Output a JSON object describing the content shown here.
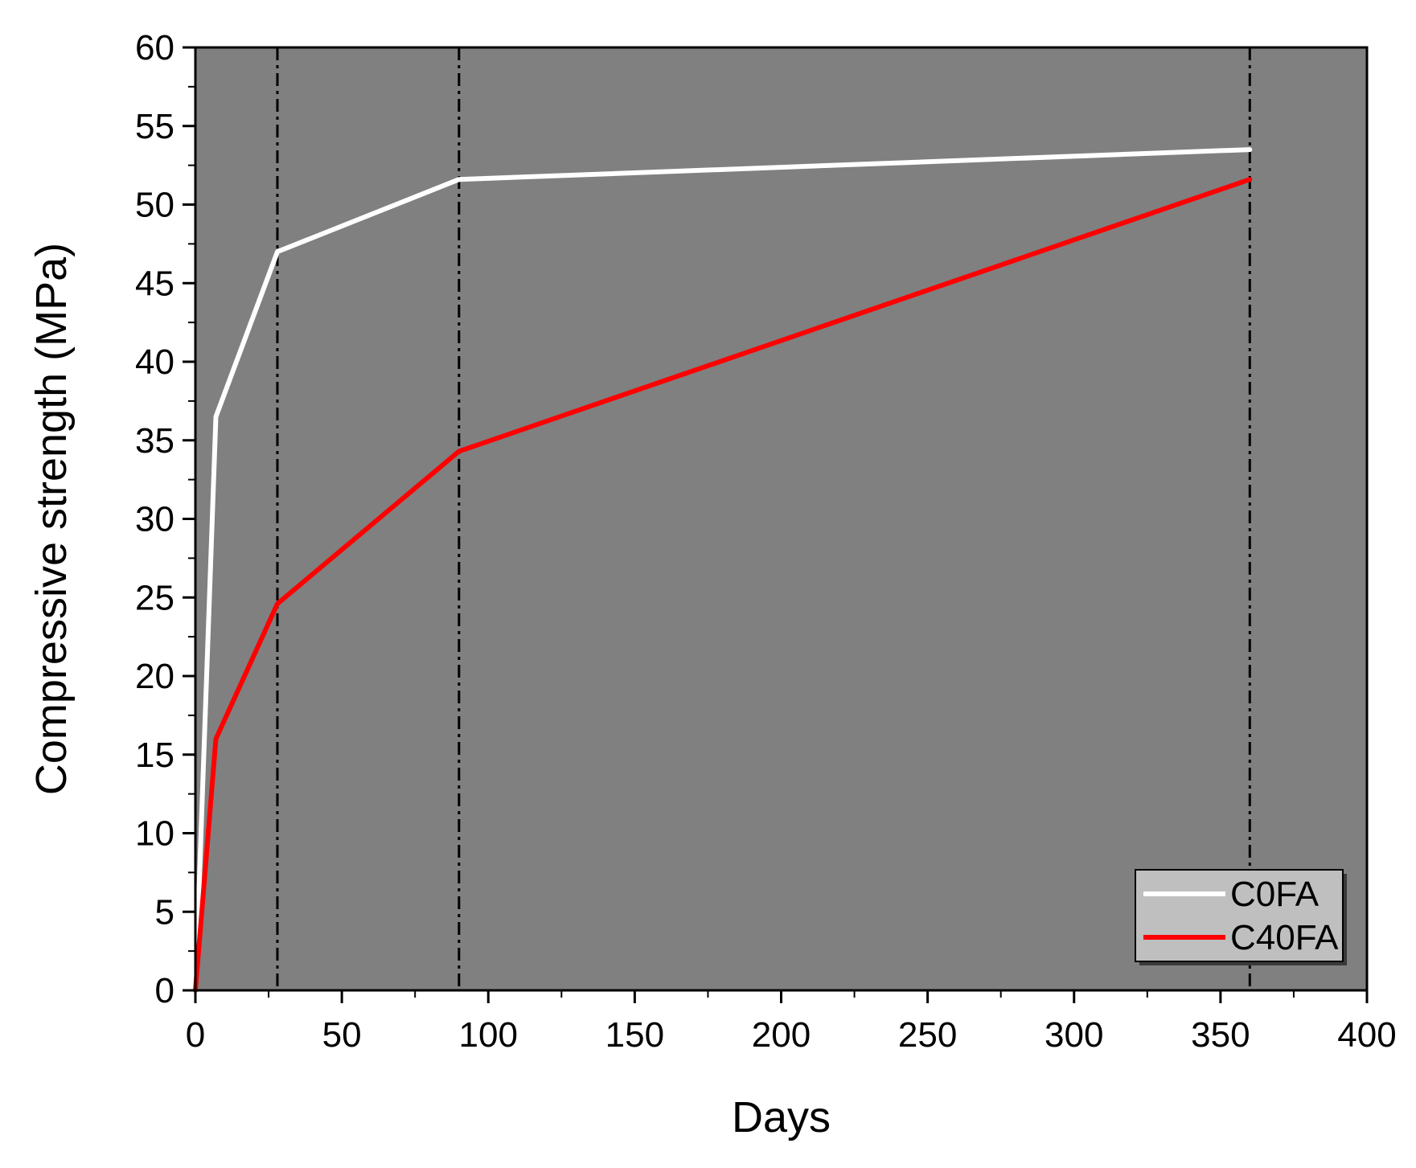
{
  "chart_data": {
    "type": "line",
    "title": "",
    "xlabel": "Days",
    "ylabel": "Compressive strength (MPa)",
    "xlim": [
      0,
      400
    ],
    "ylim": [
      0,
      60
    ],
    "x_ticks": [
      0,
      50,
      100,
      150,
      200,
      250,
      300,
      350,
      400
    ],
    "y_ticks": [
      0,
      5,
      10,
      15,
      20,
      25,
      30,
      35,
      40,
      45,
      50,
      55,
      60
    ],
    "plot_background": "#808080",
    "grid": false,
    "reference_lines_x": [
      28,
      90,
      360
    ],
    "legend_position": "bottom-right",
    "series": [
      {
        "name": "C0FA",
        "color": "#ffffff",
        "x": [
          0,
          7,
          28,
          90,
          360
        ],
        "y": [
          0,
          36.5,
          47.0,
          51.6,
          53.5
        ]
      },
      {
        "name": "C40FA",
        "color": "#ff0000",
        "x": [
          0,
          7,
          28,
          90,
          360
        ],
        "y": [
          0,
          16.0,
          24.6,
          34.3,
          51.6
        ]
      }
    ]
  }
}
